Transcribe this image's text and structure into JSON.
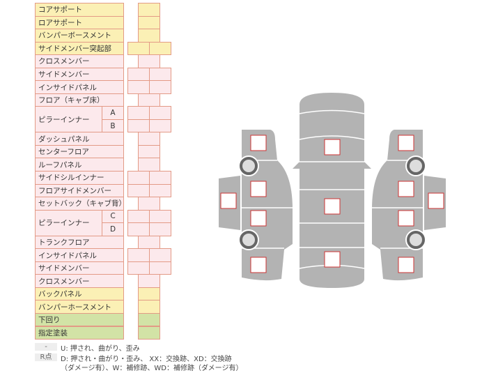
{
  "rows": [
    {
      "label": "コアサポート",
      "color": "yellow",
      "cells": 1
    },
    {
      "label": "ロアサポート",
      "color": "yellow",
      "cells": 1
    },
    {
      "label": "バンパーボースメント",
      "color": "yellow",
      "cells": 1
    },
    {
      "label": "サイドメンバー突起部",
      "color": "yellow",
      "cells": 2
    },
    {
      "label": "クロスメンバー",
      "color": "pink",
      "cells": 1
    },
    {
      "label": "サイドメンバー",
      "color": "pink",
      "cells": 2
    },
    {
      "label": "インサイドパネル",
      "color": "pink",
      "cells": 2
    },
    {
      "label": "フロア（キャブ床）",
      "color": "pink",
      "cells": 1
    },
    {
      "label": "ピラーインナー",
      "sub": "A",
      "color": "pink",
      "cells": 2,
      "span": 2
    },
    {
      "sub": "B",
      "color": "pink",
      "cells": 2
    },
    {
      "label": "ダッシュパネル",
      "color": "pink",
      "cells": 1
    },
    {
      "label": "センターフロア",
      "color": "pink",
      "cells": 1
    },
    {
      "label": "ルーフパネル",
      "color": "pink",
      "cells": 1
    },
    {
      "label": "サイドシルインナー",
      "color": "pink",
      "cells": 2
    },
    {
      "label": "フロアサイドメンバー",
      "color": "pink",
      "cells": 2
    },
    {
      "label": "セットバック（キャブ背）",
      "color": "pink",
      "cells": 1
    },
    {
      "label": "ピラーインナー",
      "sub": "C",
      "color": "pink",
      "cells": 2,
      "span": 2
    },
    {
      "sub": "D",
      "color": "pink",
      "cells": 2
    },
    {
      "label": "トランクフロア",
      "color": "pink",
      "cells": 1
    },
    {
      "label": "インサイドパネル",
      "color": "pink",
      "cells": 2
    },
    {
      "label": "サイドメンバー",
      "color": "pink",
      "cells": 2
    },
    {
      "label": "クロスメンバー",
      "color": "pink",
      "cells": 1
    },
    {
      "label": "バックパネル",
      "color": "yellow",
      "cells": 1
    },
    {
      "label": "バンパーホースメント",
      "color": "yellow",
      "cells": 1
    },
    {
      "label": "下回り",
      "color": "green",
      "cells": 1
    },
    {
      "label": "指定塗装",
      "color": "green",
      "cells": 1
    }
  ],
  "legend": [
    {
      "key": "-",
      "text": "U: 押され、曲がり、歪み"
    },
    {
      "key": "R点",
      "text": "D: 押され・曲がり・歪み、 XX：交換跡、XD：交換跡",
      "text2": "（ダメージ有）、W：補修跡、WD：補修跡（ダメージ有）"
    }
  ],
  "colors": {
    "yellow": "#fbf0b5",
    "pink": "#fce9ec",
    "green": "#d2e3a6",
    "border": "#e39a86",
    "body": "#b3b3b3",
    "box_border": "#cc3333"
  }
}
